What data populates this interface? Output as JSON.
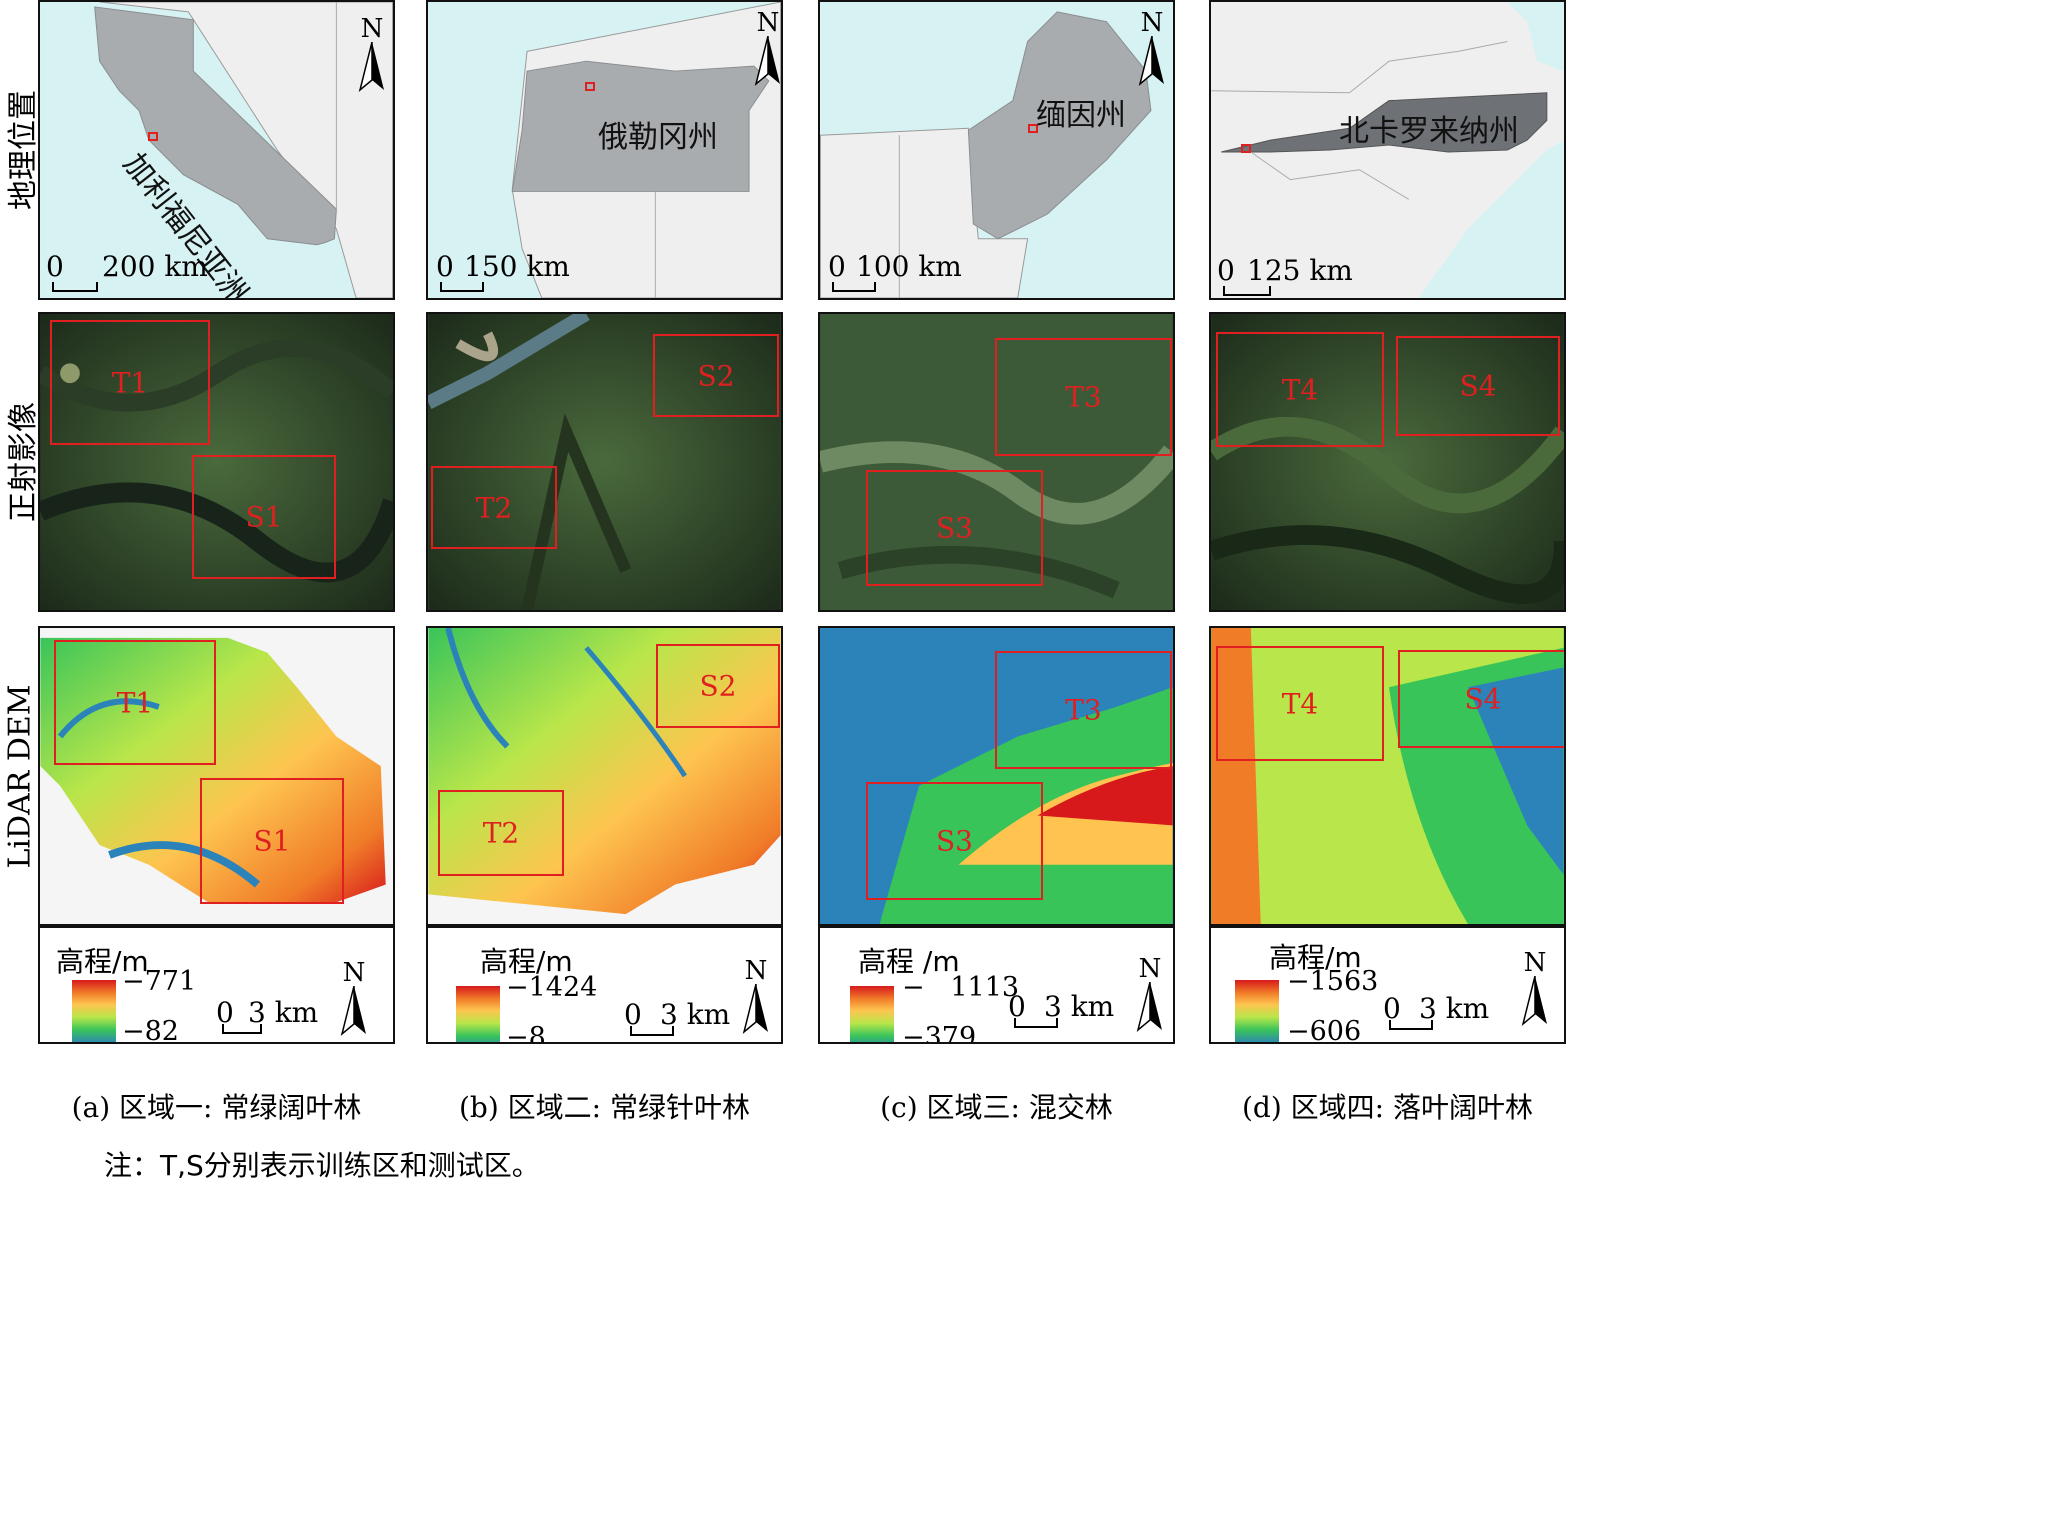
{
  "row_labels": {
    "location": "地理位置",
    "ortho": "正射影像",
    "dem": "LiDAR DEM"
  },
  "north_symbol": "N",
  "map_panels": [
    {
      "state": "加利福尼亚洲",
      "scale_zero": "0",
      "scale_dist": "200 km"
    },
    {
      "state": "俄勒冈州",
      "scale_zero": "0",
      "scale_dist": "150 km"
    },
    {
      "state": "缅因州",
      "scale_zero": "0",
      "scale_dist": "100 km"
    },
    {
      "state": "北卡罗来纳州",
      "scale_zero": "0",
      "scale_dist": "125 km"
    }
  ],
  "regions": [
    {
      "train": "T1",
      "test": "S1",
      "legend_title": "高程/m",
      "elev_max": "771",
      "elev_min": "82",
      "scale_zero": "0",
      "scale_dist": "3 km",
      "caption": "(a) 区域一: 常绿阔叶林"
    },
    {
      "train": "T2",
      "test": "S2",
      "legend_title": "高程/m",
      "elev_max": "1424",
      "elev_min": "8",
      "scale_zero": "0",
      "scale_dist": "3 km",
      "caption": "(b) 区域二: 常绿针叶林"
    },
    {
      "train": "T3",
      "test": "S3",
      "legend_title": "高程 /m",
      "elev_max": "1113",
      "elev_min": "379",
      "scale_zero": "0",
      "scale_dist": "3 km",
      "caption": "(c)  区域三: 混交林"
    },
    {
      "train": "T4",
      "test": "S4",
      "legend_title": "高程/m",
      "elev_max": "1563",
      "elev_min": "606",
      "scale_zero": "0",
      "scale_dist": "3 km",
      "caption": "(d) 区域四: 落叶阔叶林"
    }
  ],
  "colors": {
    "water": "#d6f2f3",
    "land": "#efefef",
    "state": "#a9acae",
    "state_dark": "#6e7175",
    "box": "#e02020",
    "forest_dark": "#1f2e1d",
    "forest_mid": "#34502f"
  },
  "note": "注：T,S分别表示训练区和测试区。"
}
